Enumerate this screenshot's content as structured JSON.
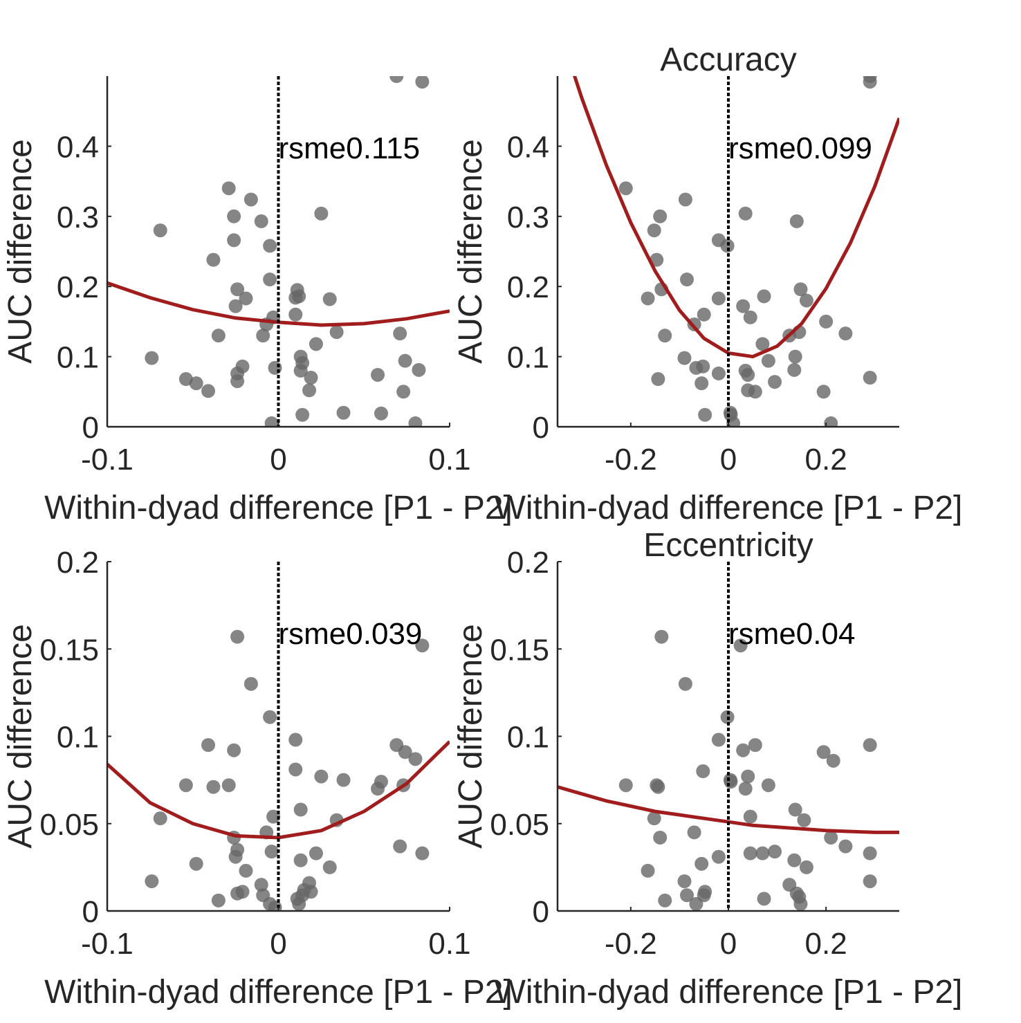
{
  "colors": {
    "points": "#666666",
    "fit": "#a11d1d",
    "axis": "#262626",
    "zero_line": "#000000"
  },
  "chart_data": [
    {
      "type": "scatter",
      "panel": "top-left",
      "xlabel": "Within-dyad difference [P1 - P2]",
      "ylabel": "AUC difference",
      "xlim": [
        -0.1,
        0.1
      ],
      "ylim": [
        0,
        0.5
      ],
      "xticks": [
        "-0.1",
        "0",
        "0.1"
      ],
      "yticks": [
        "0",
        "0.1",
        "0.2",
        "0.3",
        "0.4"
      ],
      "annotation": "rsme0.115",
      "fit": [
        [
          -0.1,
          0.205
        ],
        [
          -0.075,
          0.184
        ],
        [
          -0.05,
          0.167
        ],
        [
          -0.025,
          0.155
        ],
        [
          0.0,
          0.149
        ],
        [
          0.025,
          0.145
        ],
        [
          0.05,
          0.147
        ],
        [
          0.075,
          0.154
        ],
        [
          0.1,
          0.165
        ]
      ],
      "points": [
        [
          -0.074,
          0.098
        ],
        [
          -0.069,
          0.28
        ],
        [
          -0.054,
          0.068
        ],
        [
          -0.048,
          0.062
        ],
        [
          -0.041,
          0.051
        ],
        [
          -0.038,
          0.238
        ],
        [
          -0.035,
          0.13
        ],
        [
          -0.029,
          0.34
        ],
        [
          -0.026,
          0.3
        ],
        [
          -0.026,
          0.266
        ],
        [
          -0.025,
          0.172
        ],
        [
          -0.024,
          0.196
        ],
        [
          -0.024,
          0.076
        ],
        [
          -0.024,
          0.065
        ],
        [
          -0.021,
          0.086
        ],
        [
          -0.019,
          0.183
        ],
        [
          -0.016,
          0.324
        ],
        [
          -0.01,
          0.293
        ],
        [
          -0.009,
          0.13
        ],
        [
          -0.007,
          0.146
        ],
        [
          -0.005,
          0.258
        ],
        [
          -0.005,
          0.21
        ],
        [
          -0.004,
          0.005
        ],
        [
          -0.003,
          0.156
        ],
        [
          -0.002,
          0.084
        ],
        [
          0.01,
          0.16
        ],
        [
          0.01,
          0.184
        ],
        [
          0.011,
          0.195
        ],
        [
          0.012,
          0.186
        ],
        [
          0.013,
          0.1
        ],
        [
          0.013,
          0.08
        ],
        [
          0.014,
          0.091
        ],
        [
          0.014,
          0.017
        ],
        [
          0.018,
          0.052
        ],
        [
          0.019,
          0.07
        ],
        [
          0.022,
          0.118
        ],
        [
          0.025,
          0.304
        ],
        [
          0.03,
          0.182
        ],
        [
          0.034,
          0.135
        ],
        [
          0.038,
          0.02
        ],
        [
          0.058,
          0.074
        ],
        [
          0.06,
          0.019
        ],
        [
          0.069,
          0.5
        ],
        [
          0.071,
          0.133
        ],
        [
          0.073,
          0.05
        ],
        [
          0.074,
          0.094
        ],
        [
          0.08,
          0.005
        ],
        [
          0.082,
          0.081
        ],
        [
          0.084,
          0.492
        ]
      ]
    },
    {
      "type": "scatter",
      "panel": "top-right",
      "title": "Accuracy",
      "xlabel": "Within-dyad difference [P1 - P2]",
      "ylabel": "AUC difference",
      "xlim": [
        -0.35,
        0.35
      ],
      "ylim": [
        0,
        0.5
      ],
      "xticks": [
        "-0.2",
        "0",
        "0.2"
      ],
      "yticks": [
        "0",
        "0.1",
        "0.2",
        "0.3",
        "0.4"
      ],
      "annotation": "rsme0.099",
      "fit": [
        [
          -0.35,
          0.574
        ],
        [
          -0.3,
          0.468
        ],
        [
          -0.25,
          0.373
        ],
        [
          -0.2,
          0.291
        ],
        [
          -0.15,
          0.222
        ],
        [
          -0.1,
          0.166
        ],
        [
          -0.05,
          0.126
        ],
        [
          0.0,
          0.105
        ],
        [
          0.05,
          0.1
        ],
        [
          0.1,
          0.115
        ],
        [
          0.15,
          0.147
        ],
        [
          0.2,
          0.197
        ],
        [
          0.25,
          0.262
        ],
        [
          0.3,
          0.343
        ],
        [
          0.35,
          0.44
        ]
      ],
      "points": [
        [
          -0.21,
          0.34
        ],
        [
          -0.165,
          0.183
        ],
        [
          -0.152,
          0.28
        ],
        [
          -0.147,
          0.238
        ],
        [
          -0.144,
          0.068
        ],
        [
          -0.14,
          0.3
        ],
        [
          -0.137,
          0.196
        ],
        [
          -0.13,
          0.13
        ],
        [
          -0.09,
          0.098
        ],
        [
          -0.088,
          0.324
        ],
        [
          -0.085,
          0.21
        ],
        [
          -0.07,
          0.146
        ],
        [
          -0.066,
          0.084
        ],
        [
          -0.055,
          0.062
        ],
        [
          -0.052,
          0.086
        ],
        [
          -0.05,
          0.16
        ],
        [
          -0.048,
          0.017
        ],
        [
          -0.02,
          0.266
        ],
        [
          -0.02,
          0.183
        ],
        [
          -0.02,
          0.076
        ],
        [
          -0.002,
          0.258
        ],
        [
          0.004,
          0.02
        ],
        [
          0.005,
          0.017
        ],
        [
          0.01,
          0.005
        ],
        [
          0.03,
          0.172
        ],
        [
          0.035,
          0.08
        ],
        [
          0.035,
          0.304
        ],
        [
          0.04,
          0.074
        ],
        [
          0.04,
          0.052
        ],
        [
          0.045,
          0.156
        ],
        [
          0.055,
          0.05
        ],
        [
          0.07,
          0.118
        ],
        [
          0.073,
          0.186
        ],
        [
          0.082,
          0.094
        ],
        [
          0.095,
          0.064
        ],
        [
          0.125,
          0.13
        ],
        [
          0.135,
          0.081
        ],
        [
          0.137,
          0.1
        ],
        [
          0.14,
          0.293
        ],
        [
          0.145,
          0.135
        ],
        [
          0.148,
          0.196
        ],
        [
          0.16,
          0.18
        ],
        [
          0.195,
          0.05
        ],
        [
          0.2,
          0.15
        ],
        [
          0.21,
          0.005
        ],
        [
          0.24,
          0.133
        ],
        [
          0.29,
          0.5
        ],
        [
          0.29,
          0.492
        ],
        [
          0.29,
          0.07
        ]
      ]
    },
    {
      "type": "scatter",
      "panel": "bottom-left",
      "xlabel": "Within-dyad difference [P1 - P2]",
      "ylabel": "AUC difference",
      "xlim": [
        -0.1,
        0.1
      ],
      "ylim": [
        0,
        0.2
      ],
      "xticks": [
        "-0.1",
        "0",
        "0.1"
      ],
      "yticks": [
        "0",
        "0.05",
        "0.1",
        "0.15",
        "0.2"
      ],
      "annotation": "rsme0.039",
      "fit": [
        [
          -0.1,
          0.084
        ],
        [
          -0.075,
          0.062
        ],
        [
          -0.05,
          0.05
        ],
        [
          -0.025,
          0.043
        ],
        [
          0.0,
          0.042
        ],
        [
          0.025,
          0.046
        ],
        [
          0.05,
          0.057
        ],
        [
          0.075,
          0.073
        ],
        [
          0.1,
          0.097
        ]
      ],
      "points": [
        [
          -0.074,
          0.017
        ],
        [
          -0.069,
          0.053
        ],
        [
          -0.054,
          0.072
        ],
        [
          -0.048,
          0.027
        ],
        [
          -0.041,
          0.095
        ],
        [
          -0.038,
          0.071
        ],
        [
          -0.035,
          0.006
        ],
        [
          -0.029,
          0.072
        ],
        [
          -0.026,
          0.092
        ],
        [
          -0.026,
          0.042
        ],
        [
          -0.025,
          0.031
        ],
        [
          -0.024,
          0.035
        ],
        [
          -0.024,
          0.01
        ],
        [
          -0.024,
          0.157
        ],
        [
          -0.021,
          0.011
        ],
        [
          -0.019,
          0.023
        ],
        [
          -0.016,
          0.13
        ],
        [
          -0.01,
          0.015
        ],
        [
          -0.009,
          0.009
        ],
        [
          -0.007,
          0.045
        ],
        [
          -0.005,
          0.111
        ],
        [
          -0.005,
          0.004
        ],
        [
          -0.004,
          0.034
        ],
        [
          -0.003,
          0.054
        ],
        [
          -0.002,
          0.002
        ],
        [
          0.01,
          0.098
        ],
        [
          0.01,
          0.081
        ],
        [
          0.011,
          0.007
        ],
        [
          0.012,
          0.004
        ],
        [
          0.013,
          0.058
        ],
        [
          0.013,
          0.029
        ],
        [
          0.014,
          0.009
        ],
        [
          0.015,
          0.012
        ],
        [
          0.018,
          0.016
        ],
        [
          0.019,
          0.011
        ],
        [
          0.022,
          0.033
        ],
        [
          0.025,
          0.077
        ],
        [
          0.03,
          0.025
        ],
        [
          0.034,
          0.052
        ],
        [
          0.038,
          0.075
        ],
        [
          0.058,
          0.07
        ],
        [
          0.06,
          0.074
        ],
        [
          0.069,
          0.095
        ],
        [
          0.071,
          0.037
        ],
        [
          0.073,
          0.072
        ],
        [
          0.074,
          0.091
        ],
        [
          0.08,
          0.087
        ],
        [
          0.084,
          0.152
        ],
        [
          0.084,
          0.033
        ]
      ]
    },
    {
      "type": "scatter",
      "panel": "bottom-right",
      "title": "Eccentricity",
      "xlabel": "Within-dyad difference [P1 - P2]",
      "ylabel": "AUC difference",
      "xlim": [
        -0.35,
        0.35
      ],
      "ylim": [
        0,
        0.2
      ],
      "xticks": [
        "-0.2",
        "0",
        "0.2"
      ],
      "yticks": [
        "0",
        "0.05",
        "0.1",
        "0.15",
        "0.2"
      ],
      "annotation": "rsme0.04",
      "fit": [
        [
          -0.35,
          0.071
        ],
        [
          -0.3,
          0.067
        ],
        [
          -0.25,
          0.063
        ],
        [
          -0.2,
          0.06
        ],
        [
          -0.15,
          0.057
        ],
        [
          -0.1,
          0.055
        ],
        [
          -0.05,
          0.053
        ],
        [
          0.0,
          0.051
        ],
        [
          0.05,
          0.049
        ],
        [
          0.1,
          0.048
        ],
        [
          0.15,
          0.047
        ],
        [
          0.2,
          0.046
        ],
        [
          0.25,
          0.0455
        ],
        [
          0.3,
          0.045
        ],
        [
          0.35,
          0.045
        ]
      ],
      "points": [
        [
          -0.21,
          0.072
        ],
        [
          -0.165,
          0.023
        ],
        [
          -0.152,
          0.053
        ],
        [
          -0.147,
          0.072
        ],
        [
          -0.144,
          0.071
        ],
        [
          -0.14,
          0.042
        ],
        [
          -0.137,
          0.157
        ],
        [
          -0.13,
          0.006
        ],
        [
          -0.09,
          0.017
        ],
        [
          -0.088,
          0.13
        ],
        [
          -0.085,
          0.009
        ],
        [
          -0.07,
          0.045
        ],
        [
          -0.066,
          0.004
        ],
        [
          -0.055,
          0.027
        ],
        [
          -0.052,
          0.08
        ],
        [
          -0.05,
          0.009
        ],
        [
          -0.048,
          0.011
        ],
        [
          -0.02,
          0.098
        ],
        [
          -0.02,
          0.031
        ],
        [
          -0.002,
          0.111
        ],
        [
          0.004,
          0.075
        ],
        [
          0.005,
          0.074
        ],
        [
          0.025,
          0.152
        ],
        [
          0.03,
          0.092
        ],
        [
          0.035,
          0.07
        ],
        [
          0.04,
          0.077
        ],
        [
          0.045,
          0.054
        ],
        [
          0.045,
          0.033
        ],
        [
          0.055,
          0.095
        ],
        [
          0.07,
          0.033
        ],
        [
          0.073,
          0.007
        ],
        [
          0.082,
          0.072
        ],
        [
          0.095,
          0.034
        ],
        [
          0.125,
          0.015
        ],
        [
          0.135,
          0.029
        ],
        [
          0.137,
          0.058
        ],
        [
          0.14,
          0.01
        ],
        [
          0.145,
          0.008
        ],
        [
          0.148,
          0.004
        ],
        [
          0.155,
          0.052
        ],
        [
          0.16,
          0.025
        ],
        [
          0.195,
          0.091
        ],
        [
          0.21,
          0.042
        ],
        [
          0.215,
          0.086
        ],
        [
          0.24,
          0.037
        ],
        [
          0.29,
          0.095
        ],
        [
          0.29,
          0.033
        ],
        [
          0.29,
          0.017
        ]
      ]
    }
  ]
}
